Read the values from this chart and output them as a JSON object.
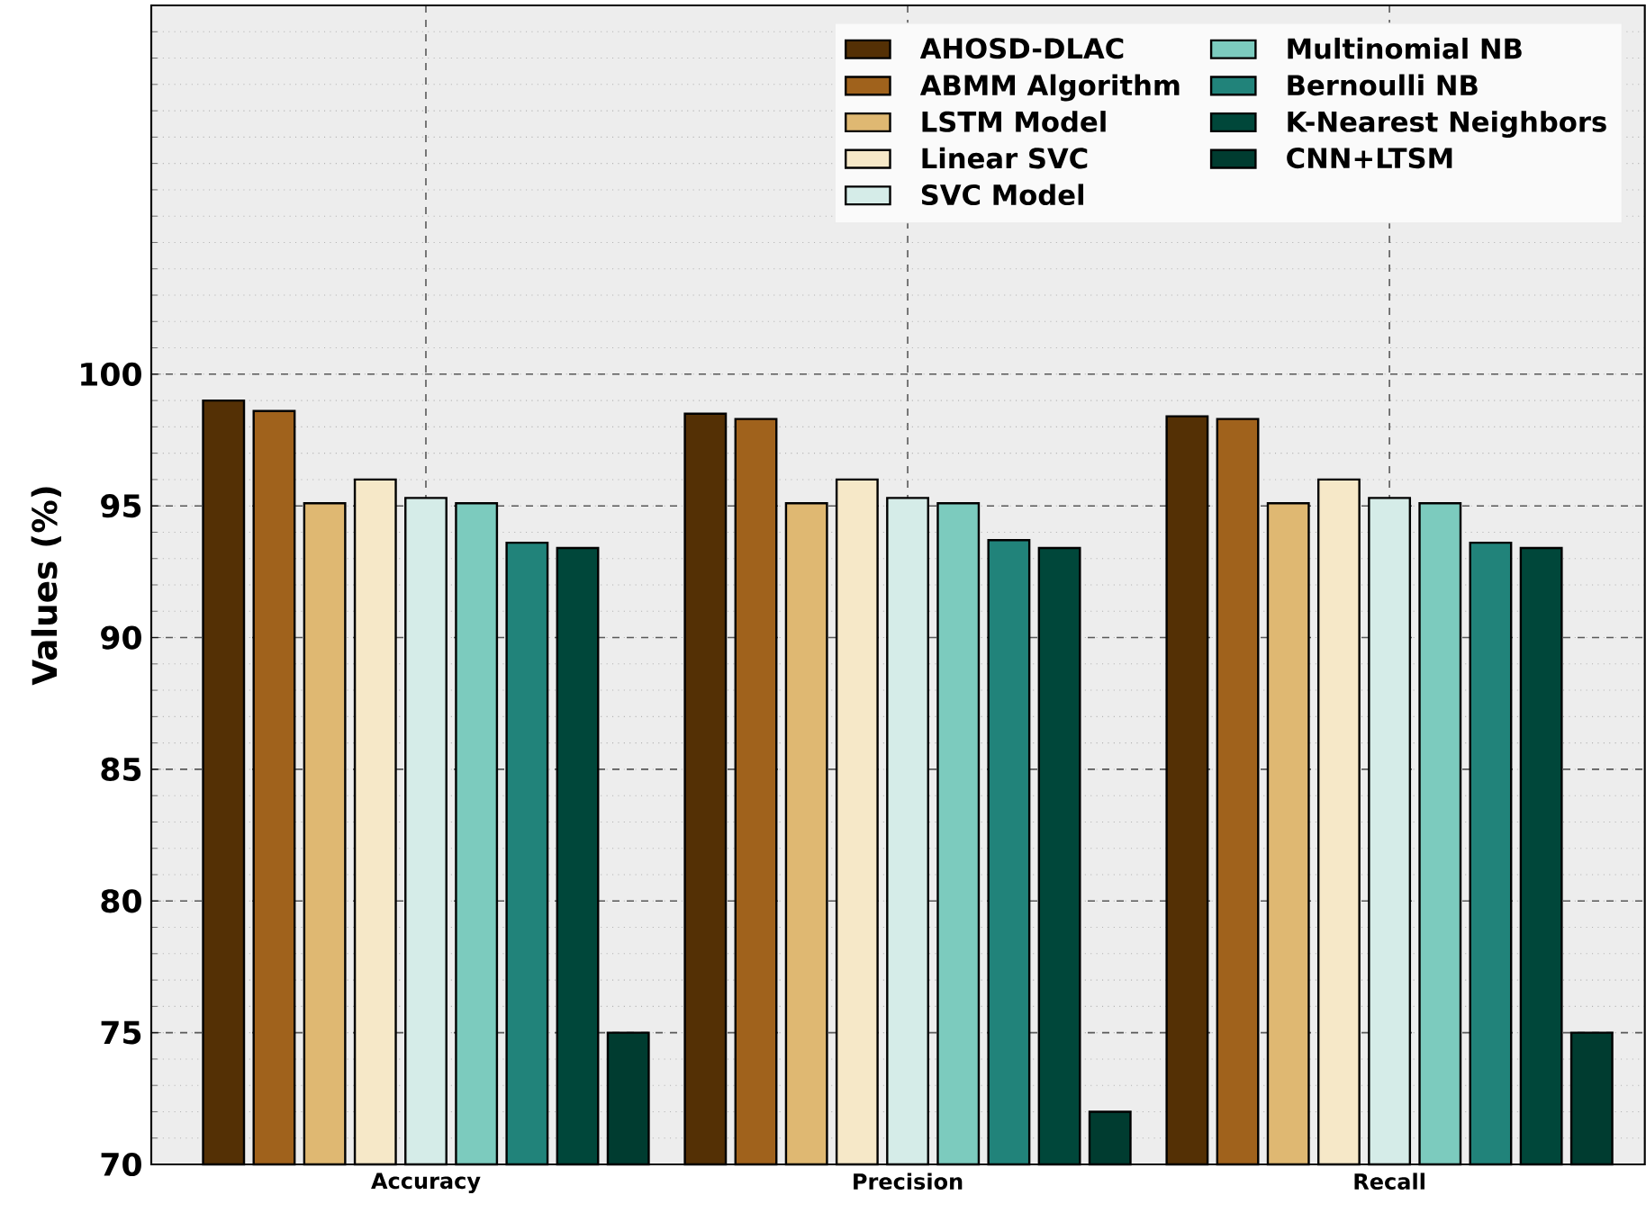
{
  "chart_data": {
    "type": "bar",
    "ylabel": "Values (%)",
    "categories": [
      "Accuracy",
      "Precision",
      "Recall"
    ],
    "series": [
      {
        "name": "AHOSD-DLAC",
        "color": "#543005",
        "values": [
          99.0,
          98.5,
          98.4
        ]
      },
      {
        "name": "ABMM Algorithm",
        "color": "#a0621c",
        "values": [
          98.6,
          98.3,
          98.3
        ]
      },
      {
        "name": "LSTM Model",
        "color": "#dfb872",
        "values": [
          95.1,
          95.1,
          95.1
        ]
      },
      {
        "name": "Linear SVC",
        "color": "#f6e8c8",
        "values": [
          96.0,
          96.0,
          96.0
        ]
      },
      {
        "name": "SVC Model",
        "color": "#d5ece8",
        "values": [
          95.3,
          95.3,
          95.3
        ]
      },
      {
        "name": "Multinomial NB",
        "color": "#7ccbbe",
        "values": [
          95.1,
          95.1,
          95.1
        ]
      },
      {
        "name": "Bernoulli NB",
        "color": "#21837a",
        "values": [
          93.6,
          93.7,
          93.6
        ]
      },
      {
        "name": "K-Nearest Neighbors",
        "color": "#00473a",
        "values": [
          93.4,
          93.4,
          93.4
        ]
      },
      {
        "name": "CNN+LTSM",
        "color": "#003c30",
        "values": [
          75,
          72,
          75
        ]
      }
    ],
    "ylim": [
      70,
      114
    ],
    "yticks": [
      70,
      75,
      80,
      85,
      90,
      95,
      100
    ],
    "grid": true,
    "legend": "top right"
  }
}
